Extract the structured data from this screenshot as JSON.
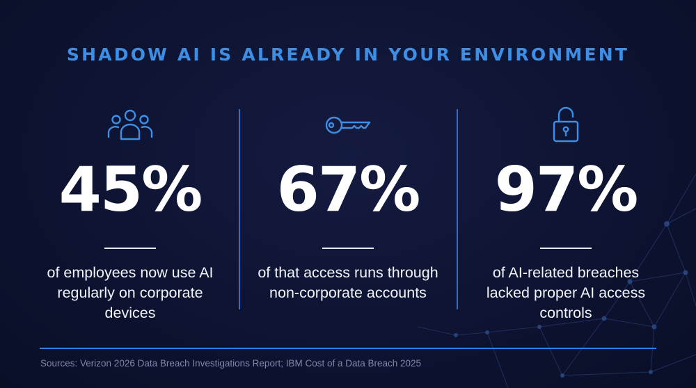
{
  "headline": "SHADOW AI IS ALREADY IN YOUR ENVIRONMENT",
  "stats": [
    {
      "icon": "users-icon",
      "value": "45%",
      "description": "of employees now use AI regularly on corporate devices"
    },
    {
      "icon": "key-icon",
      "value": "67%",
      "description": "of that access runs through non-corporate accounts"
    },
    {
      "icon": "unlocked-padlock-icon",
      "value": "97%",
      "description": "of AI-related breaches lacked proper AI access controls"
    }
  ],
  "sources": "Sources: Verizon 2026 Data Breach Investigations Report; IBM Cost of a Data Breach 2025",
  "colors": {
    "background": "#0d1330",
    "accent": "#3d8fe6",
    "divider": "#2f6fc9",
    "text": "#ffffff",
    "muted": "#7f88a8"
  }
}
